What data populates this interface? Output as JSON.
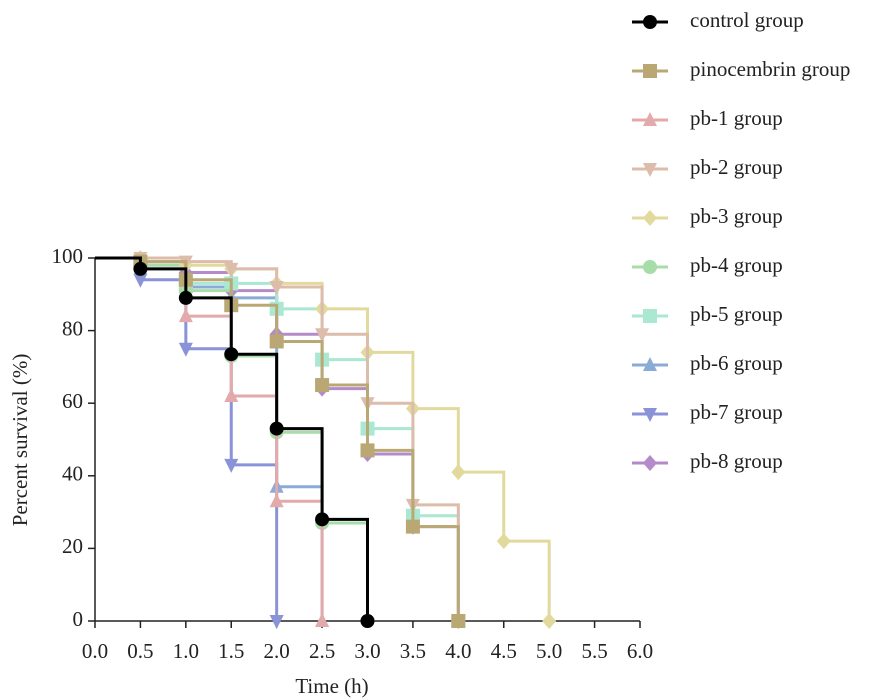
{
  "chart_data": {
    "type": "step",
    "xlabel": "Time (h)",
    "ylabel": "Percent survival (%)",
    "xlim": [
      0,
      6
    ],
    "ylim": [
      0,
      100
    ],
    "xticks": [
      {
        "value": 0,
        "label": "0.0"
      },
      0.5,
      {
        "value": 1,
        "label": "1.0"
      },
      1.5,
      {
        "value": 2,
        "label": "2.0"
      },
      2.5,
      {
        "value": 3,
        "label": "3.0"
      },
      3.5,
      {
        "value": 4,
        "label": "4.0"
      },
      4.5,
      {
        "value": 5,
        "label": "5.0"
      },
      5.5,
      {
        "value": 6,
        "label": "6.0"
      }
    ],
    "yticks": [
      0,
      20,
      40,
      60,
      80,
      100
    ],
    "series": [
      {
        "name": "control group",
        "color": "#000000",
        "marker": "circle",
        "x": [
          0,
          0.5,
          1,
          1.5,
          2,
          2.5,
          3
        ],
        "values": [
          100,
          97,
          89,
          73.5,
          53,
          28,
          0
        ]
      },
      {
        "name": "pinocembrin group",
        "color": "#b9a874",
        "marker": "square",
        "x": [
          0,
          0.5,
          1,
          1.5,
          2,
          2.5,
          3,
          3.5,
          4
        ],
        "values": [
          100,
          99,
          94,
          87,
          77,
          65,
          47,
          26,
          0
        ]
      },
      {
        "name": "pb-1 group",
        "color": "#e2aaaa",
        "marker": "triangle-up",
        "x": [
          0,
          0.5,
          1,
          1.5,
          2,
          2.5
        ],
        "values": [
          100,
          99,
          84,
          62,
          33,
          0
        ]
      },
      {
        "name": "pb-2 group",
        "color": "#dcbcaa",
        "marker": "triangle-down",
        "x": [
          0,
          0.5,
          1,
          1.5,
          2,
          2.5,
          3,
          3.5,
          4
        ],
        "values": [
          100,
          100,
          99,
          97,
          92,
          79,
          60,
          32,
          0
        ]
      },
      {
        "name": "pb-3 group",
        "color": "#e2da9c",
        "marker": "diamond",
        "x": [
          0,
          0.5,
          1,
          1.5,
          2,
          2.5,
          3,
          3.5,
          4,
          4.5,
          5
        ],
        "values": [
          100,
          100,
          98,
          97,
          93,
          86,
          74,
          58.5,
          41,
          22,
          0
        ]
      },
      {
        "name": "pb-4 group",
        "color": "#a8dca8",
        "marker": "circle",
        "x": [
          0,
          0.5,
          1,
          1.5,
          2,
          2.5,
          3
        ],
        "values": [
          100,
          98,
          91,
          73,
          52,
          27,
          0
        ]
      },
      {
        "name": "pb-5 group",
        "color": "#aae8d2",
        "marker": "square",
        "x": [
          0,
          0.5,
          1,
          1.5,
          2,
          2.5,
          3,
          3.5,
          4
        ],
        "values": [
          100,
          99,
          93,
          93,
          86,
          72,
          53,
          29,
          0
        ]
      },
      {
        "name": "pb-6 group",
        "color": "#8aaad8",
        "marker": "triangle-up",
        "x": [
          0,
          0.5,
          1,
          1.5,
          2,
          2.5
        ],
        "values": [
          100,
          97,
          92,
          89,
          37,
          0
        ]
      },
      {
        "name": "pb-7 group",
        "color": "#8a92d8",
        "marker": "triangle-down",
        "x": [
          0,
          0.5,
          1,
          1.5,
          2
        ],
        "values": [
          100,
          94,
          75,
          43,
          0
        ]
      },
      {
        "name": "pb-8 group",
        "color": "#b48ac8",
        "marker": "diamond",
        "x": [
          0,
          0.5,
          1,
          1.5,
          2,
          2.5,
          3,
          3.5,
          4
        ],
        "values": [
          100,
          99,
          96,
          91,
          79,
          64,
          46,
          26,
          0
        ]
      }
    ]
  }
}
